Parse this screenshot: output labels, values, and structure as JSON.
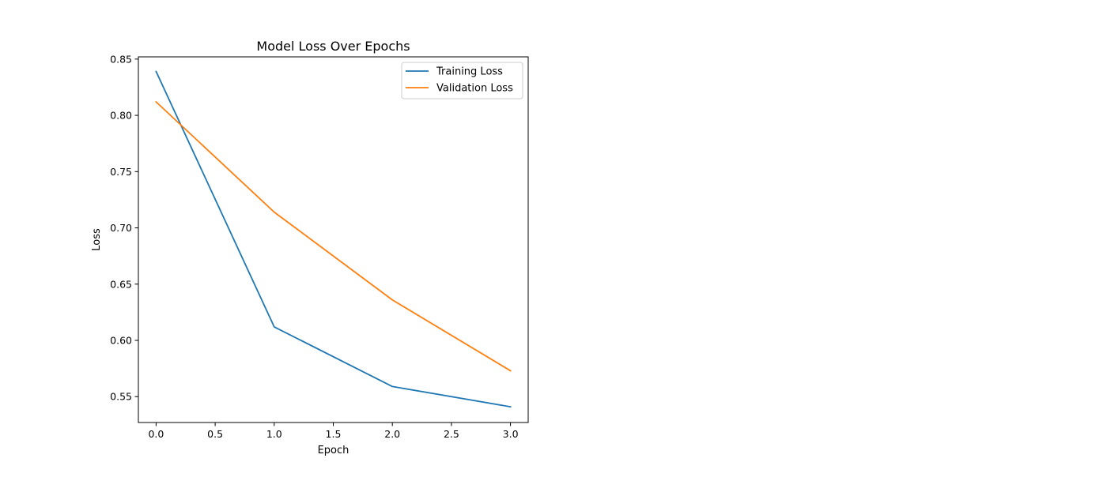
{
  "chart_data": {
    "type": "line",
    "title": "Model Loss Over Epochs",
    "xlabel": "Epoch",
    "ylabel": "Loss",
    "x": [
      0,
      1,
      2,
      3
    ],
    "xlim": [
      -0.15,
      3.15
    ],
    "ylim": [
      0.527,
      0.852
    ],
    "xticks": [
      0.0,
      0.5,
      1.0,
      1.5,
      2.0,
      2.5,
      3.0
    ],
    "xtick_labels": [
      "0.0",
      "0.5",
      "1.0",
      "1.5",
      "2.0",
      "2.5",
      "3.0"
    ],
    "yticks": [
      0.55,
      0.6,
      0.65,
      0.7,
      0.75,
      0.8,
      0.85
    ],
    "ytick_labels": [
      "0.55",
      "0.60",
      "0.65",
      "0.70",
      "0.75",
      "0.80",
      "0.85"
    ],
    "grid": false,
    "legend_position": "top-right",
    "series": [
      {
        "name": "Training Loss",
        "color": "#1f77b4",
        "values": [
          0.839,
          0.612,
          0.559,
          0.541
        ]
      },
      {
        "name": "Validation Loss",
        "color": "#ff7f0e",
        "values": [
          0.812,
          0.714,
          0.636,
          0.573
        ]
      }
    ]
  }
}
